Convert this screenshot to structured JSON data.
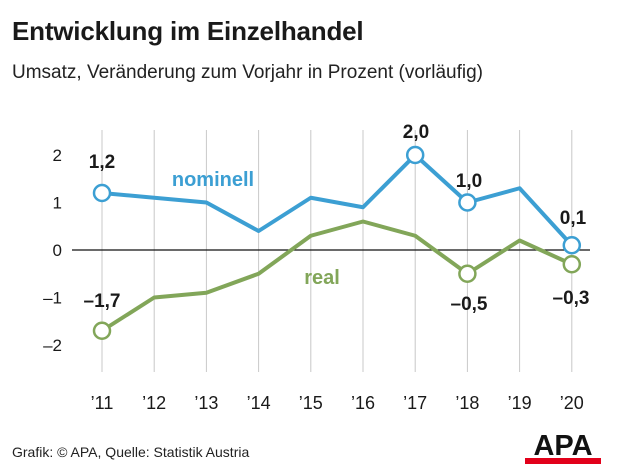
{
  "header": {
    "title": "Entwicklung im Einzelhandel",
    "subtitle": "Umsatz, Veränderung zum Vorjahr in Prozent (vorläufig)"
  },
  "footer": {
    "source": "Grafik: © APA, Quelle: Statistik Austria",
    "logo_text": "APA"
  },
  "chart_data": {
    "type": "line",
    "categories": [
      "’11",
      "’12",
      "’13",
      "’14",
      "’15",
      "’16",
      "’17",
      "’18",
      "’19",
      "’20"
    ],
    "y_ticks": [
      "2",
      "1",
      "0",
      "–1",
      "–2"
    ],
    "ylim": [
      -2.6,
      2.6
    ],
    "grid": "vertical",
    "series": [
      {
        "name": "nominell",
        "color": "#3c9fd3",
        "values": [
          1.2,
          1.1,
          1.0,
          0.4,
          1.1,
          0.9,
          2.0,
          1.0,
          1.3,
          0.1
        ],
        "markers": [
          0,
          6,
          7,
          9
        ],
        "labels": [
          "1,2",
          "2,0",
          "1,0",
          "0,1"
        ]
      },
      {
        "name": "real",
        "color": "#82a659",
        "values": [
          -1.7,
          -1.0,
          -0.9,
          -0.5,
          0.3,
          0.6,
          0.3,
          -0.5,
          0.2,
          -0.3
        ],
        "markers": [
          0,
          7,
          9
        ],
        "labels": [
          "–1,7",
          "–0,5",
          "–0,3"
        ]
      }
    ]
  }
}
